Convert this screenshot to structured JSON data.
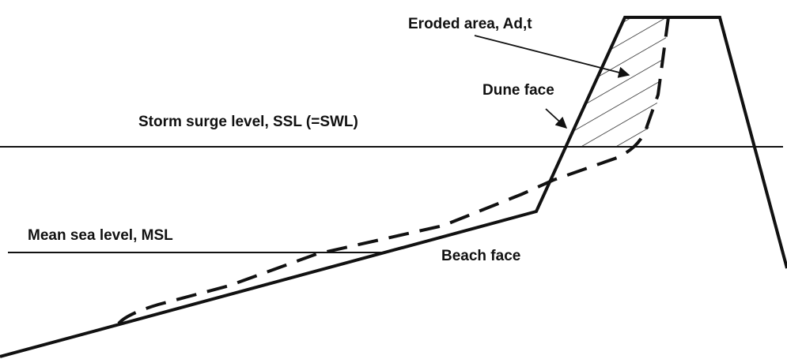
{
  "labels": {
    "eroded_area": "Eroded area, Ad,t",
    "dune_face": "Dune face",
    "storm_surge_level": "Storm surge level, SSL (=SWL)",
    "mean_sea_level": "Mean sea level, MSL",
    "beach_face": "Beach face"
  }
}
